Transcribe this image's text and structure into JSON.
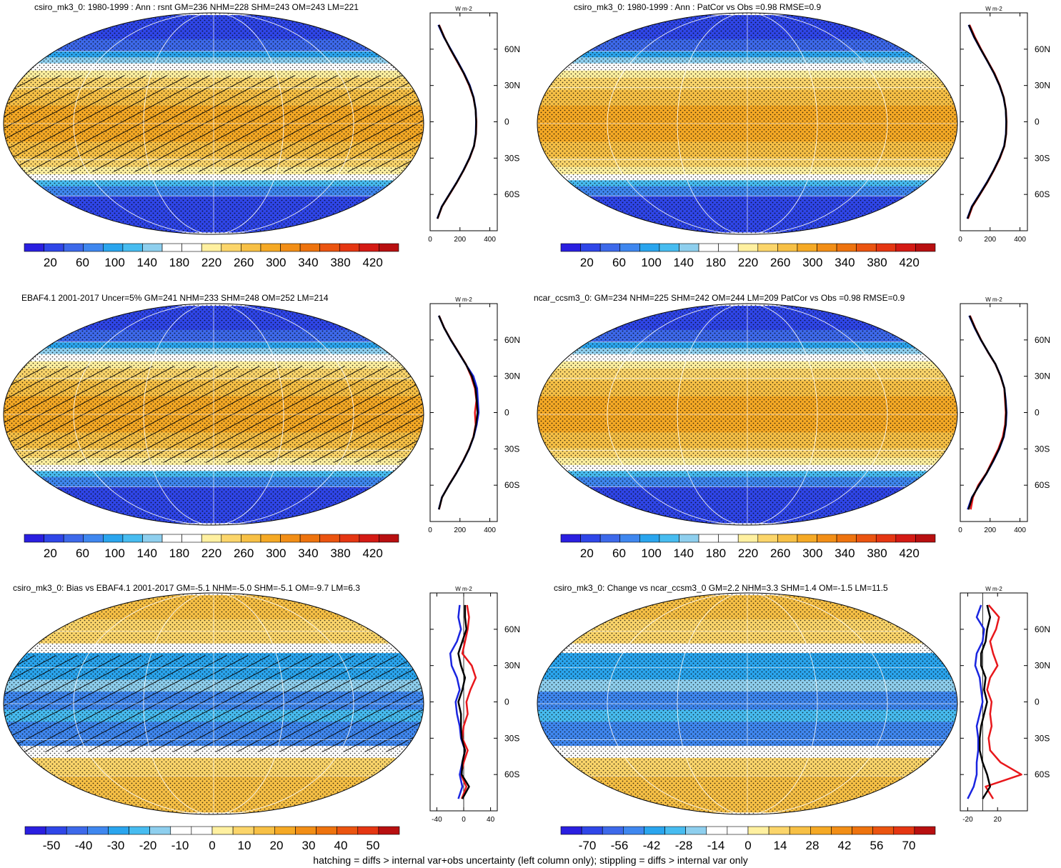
{
  "footer": "hatching = diffs > internal var+obs uncertainty (left column only); stippling = diffs > internal var only",
  "colors": {
    "abs_scale": [
      "#2a1fe0",
      "#2f46e8",
      "#3d69ea",
      "#3f87ef",
      "#2aa5ee",
      "#47bcf0",
      "#8ecfee",
      "#ffffff",
      "#ffffff",
      "#fff0a0",
      "#fbd56a",
      "#f7c045",
      "#f5a925",
      "#f28e16",
      "#ee730e",
      "#eb5410",
      "#e53612",
      "#d41a14",
      "#b80f10"
    ],
    "diff_scale": [
      "#2a1fe0",
      "#2f46e8",
      "#3d69ea",
      "#3f87ef",
      "#2aa5ee",
      "#47bcf0",
      "#8ecfee",
      "#ffffff",
      "#ffffff",
      "#fff0a0",
      "#fbd56a",
      "#f7c045",
      "#f5a925",
      "#f28e16",
      "#ee730e",
      "#eb5410",
      "#e53612",
      "#b80f10"
    ],
    "model_line": "#e8171b",
    "obs_line": "#1a25e0",
    "ref_line": "#000000"
  },
  "chart_data": [
    {
      "type": "heatmap",
      "title": "csiro_mk3_0: 1980-1999 : Ann : rsnt GM=236 NHM=228 SHM=243 OM=243 LM=221",
      "colorbar_labels": [
        "20",
        "60",
        "100",
        "140",
        "180",
        "220",
        "260",
        "300",
        "340",
        "380",
        "420"
      ],
      "hatching": true,
      "profile": {
        "unit_label": "W m-2",
        "xticks": [
          "0",
          "200",
          "400"
        ],
        "xlim": [
          0,
          450
        ],
        "lat_ticks": [
          "60N",
          "30N",
          "0",
          "30S",
          "60S"
        ],
        "lat": [
          80,
          70,
          60,
          50,
          40,
          30,
          20,
          10,
          0,
          -10,
          -20,
          -30,
          -40,
          -50,
          -60,
          -70,
          -80
        ],
        "series": [
          {
            "name": "model",
            "values": [
              60,
              95,
              135,
              180,
              225,
              262,
              290,
              305,
              310,
              308,
              295,
              265,
              225,
              180,
              130,
              80,
              50
            ]
          },
          {
            "name": "obs",
            "values": [
              55,
              92,
              138,
              184,
              228,
              266,
              292,
              306,
              308,
              306,
              294,
              263,
              223,
              178,
              128,
              78,
              48
            ]
          },
          {
            "name": "ref",
            "values": [
              58,
              94,
              136,
              182,
              226,
              264,
              291,
              305,
              309,
              307,
              294,
              264,
              224,
              179,
              129,
              79,
              49
            ]
          }
        ]
      }
    },
    {
      "type": "heatmap",
      "title": "csiro_mk3_0: 1980-1999 : Ann : PatCor vs Obs =0.98 RMSE=0.9",
      "colorbar_labels": [
        "20",
        "60",
        "100",
        "140",
        "180",
        "220",
        "260",
        "300",
        "340",
        "380",
        "420"
      ],
      "hatching": false,
      "profile": {
        "unit_label": "W m-2",
        "xticks": [
          "0",
          "200",
          "400"
        ],
        "xlim": [
          0,
          450
        ],
        "lat_ticks": [
          "60N",
          "30N",
          "0",
          "30S",
          "60S"
        ],
        "lat": [
          80,
          70,
          60,
          50,
          40,
          30,
          20,
          10,
          0,
          -10,
          -20,
          -30,
          -40,
          -50,
          -60,
          -70,
          -80
        ],
        "series": [
          {
            "name": "model",
            "values": [
              62,
              98,
              140,
              185,
              230,
              265,
              292,
              306,
              310,
              308,
              296,
              266,
              226,
              182,
              132,
              82,
              52
            ]
          },
          {
            "name": "obs",
            "values": [
              56,
              92,
              136,
              182,
              226,
              263,
              290,
              305,
              308,
              306,
              294,
              263,
              223,
              178,
              128,
              77,
              47
            ]
          },
          {
            "name": "ref",
            "values": [
              58,
              94,
              137,
              183,
              227,
              264,
              291,
              305,
              309,
              307,
              295,
              264,
              224,
              180,
              130,
              79,
              49
            ]
          }
        ]
      }
    },
    {
      "type": "heatmap",
      "title": "EBAF4.1 2001-2017 Uncer=5% GM=241 NHM=233 SHM=248 OM=252 LM=214",
      "colorbar_labels": [
        "20",
        "60",
        "100",
        "140",
        "180",
        "220",
        "260",
        "300",
        "340",
        "380",
        "420"
      ],
      "hatching": true,
      "profile": {
        "unit_label": "W m-2",
        "xticks": [
          "0",
          "200",
          "400"
        ],
        "xlim": [
          0,
          450
        ],
        "lat_ticks": [
          "60N",
          "30N",
          "0",
          "30S",
          "60S"
        ],
        "lat": [
          80,
          70,
          60,
          50,
          40,
          30,
          20,
          10,
          0,
          -10,
          -20,
          -30,
          -40,
          -50,
          -60,
          -70,
          -80
        ],
        "series": [
          {
            "name": "model",
            "values": [
              60,
              95,
              140,
              190,
              240,
              275,
              300,
              310,
              300,
              305,
              290,
              260,
              220,
              175,
              125,
              80,
              60
            ]
          },
          {
            "name": "obs",
            "values": [
              58,
              94,
              138,
              188,
              238,
              290,
              315,
              320,
              325,
              312,
              292,
              262,
              222,
              176,
              126,
              79,
              58
            ]
          },
          {
            "name": "ref",
            "values": [
              59,
              94,
              139,
              189,
              239,
              280,
              305,
              312,
              318,
              308,
              291,
              261,
              221,
              176,
              126,
              80,
              59
            ]
          }
        ]
      }
    },
    {
      "type": "heatmap",
      "title": "ncar_ccsm3_0: GM=234 NHM=225 SHM=242 OM=244 LM=209 PatCor vs Obs =0.98 RMSE=0.9",
      "colorbar_labels": [
        "20",
        "60",
        "100",
        "140",
        "180",
        "220",
        "260",
        "300",
        "340",
        "380",
        "420"
      ],
      "hatching": false,
      "profile": {
        "unit_label": "W m-2",
        "xticks": [
          "0",
          "200",
          "400"
        ],
        "xlim": [
          0,
          450
        ],
        "lat_ticks": [
          "60N",
          "30N",
          "0",
          "30S",
          "60S"
        ],
        "lat": [
          80,
          70,
          60,
          50,
          40,
          30,
          20,
          10,
          0,
          -10,
          -20,
          -30,
          -40,
          -50,
          -60,
          -70,
          -80
        ],
        "series": [
          {
            "name": "model",
            "values": [
              65,
              100,
              140,
              185,
              235,
              270,
              295,
              300,
              305,
              300,
              285,
              255,
              215,
              175,
              120,
              85,
              70
            ]
          },
          {
            "name": "obs",
            "values": [
              60,
              96,
              138,
              186,
              236,
              272,
              296,
              305,
              310,
              306,
              292,
              262,
              222,
              178,
              128,
              78,
              50
            ]
          },
          {
            "name": "ref",
            "values": [
              62,
              98,
              139,
              186,
              236,
              271,
              296,
              303,
              308,
              304,
              290,
              260,
              220,
              177,
              126,
              80,
              55
            ]
          }
        ]
      }
    },
    {
      "type": "heatmap",
      "title": "csiro_mk3_0: Bias vs EBAF4.1 2001-2017 GM=-5.1 NHM=-5.0 SHM=-5.1 OM=-9.7 LM=6.3",
      "colorbar_labels": [
        "-50",
        "-40",
        "-30",
        "-20",
        "-10",
        "0",
        "10",
        "20",
        "30",
        "40",
        "50"
      ],
      "hatching": true,
      "profile": {
        "unit_label": "W m-2",
        "xticks": [
          "-40",
          "0",
          "40"
        ],
        "xlim": [
          -50,
          50
        ],
        "lat_ticks": [
          "60N",
          "30N",
          "0",
          "30S",
          "60S"
        ],
        "lat": [
          80,
          70,
          60,
          50,
          40,
          30,
          20,
          10,
          0,
          -10,
          -20,
          -30,
          -40,
          -50,
          -60,
          -70,
          -80
        ],
        "series": [
          {
            "name": "model",
            "values": [
              5,
              8,
              6,
              2,
              -2,
              12,
              18,
              10,
              4,
              6,
              0,
              -2,
              6,
              0,
              -4,
              4,
              -3
            ]
          },
          {
            "name": "obs",
            "values": [
              -6,
              -8,
              -4,
              -10,
              -20,
              -18,
              -10,
              -6,
              -12,
              -10,
              -6,
              -4,
              2,
              -2,
              -6,
              -2,
              -8
            ]
          },
          {
            "name": "ref",
            "values": [
              2,
              2,
              4,
              -2,
              -8,
              -4,
              2,
              -2,
              -8,
              -4,
              -4,
              -3,
              2,
              -2,
              -3,
              8,
              -2
            ]
          }
        ]
      }
    },
    {
      "type": "heatmap",
      "title": "csiro_mk3_0: Change vs ncar_ccsm3_0 GM=2.2 NHM=3.3 SHM=1.4 OM=-1.5 LM=11.5",
      "colorbar_labels": [
        "-70",
        "-56",
        "-42",
        "-28",
        "-14",
        "0",
        "14",
        "28",
        "42",
        "56",
        "70"
      ],
      "hatching": false,
      "profile": {
        "unit_label": "W m-2",
        "xticks": [
          "-20",
          "20"
        ],
        "xlim": [
          -30,
          60
        ],
        "lat_ticks": [
          "60N",
          "30N",
          "0",
          "30S",
          "60S"
        ],
        "lat": [
          80,
          70,
          60,
          50,
          40,
          30,
          20,
          10,
          0,
          -10,
          -20,
          -30,
          -40,
          -50,
          -60,
          -70,
          -80
        ],
        "series": [
          {
            "name": "model",
            "values": [
              8,
              22,
              18,
              10,
              14,
              20,
              10,
              6,
              12,
              10,
              12,
              8,
              10,
              24,
              52,
              4,
              14
            ]
          },
          {
            "name": "obs",
            "values": [
              -2,
              -8,
              2,
              0,
              -8,
              -10,
              -4,
              -2,
              0,
              -4,
              -8,
              -6,
              -6,
              -8,
              -8,
              -12,
              -20
            ]
          },
          {
            "name": "ref",
            "values": [
              6,
              10,
              6,
              4,
              -2,
              -2,
              4,
              2,
              6,
              2,
              -2,
              -4,
              -4,
              0,
              6,
              10,
              0
            ]
          }
        ]
      }
    }
  ]
}
